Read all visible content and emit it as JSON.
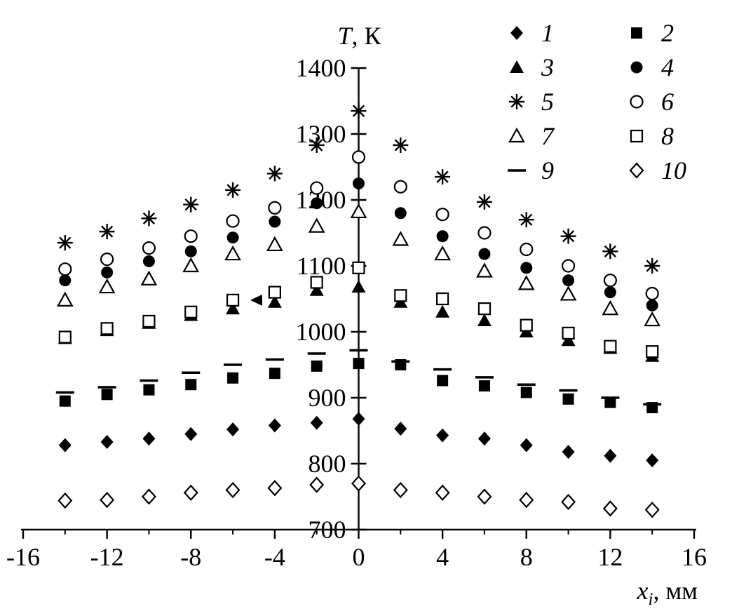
{
  "labels": {
    "y_axis_italic": "T",
    "y_axis_rest": ", К",
    "x_axis_italic": "x",
    "x_axis_sub": "i",
    "x_axis_rest": ", мм"
  },
  "chart_data": {
    "type": "scatter",
    "title": "T, К",
    "xlabel": "x_i, мм",
    "ylabel": "T, К",
    "xlim": [
      -16,
      16
    ],
    "ylim": [
      700,
      1400
    ],
    "grid": false,
    "legend_position": "top-right",
    "x_ticks": [
      -16,
      -12,
      -8,
      -4,
      0,
      4,
      8,
      12,
      16
    ],
    "x_minor_step": 2,
    "y_ticks": [
      700,
      800,
      900,
      1000,
      1100,
      1200,
      1300,
      1400
    ],
    "x": [
      -14,
      -12,
      -10,
      -8,
      -6,
      -4,
      -2,
      0,
      2,
      4,
      6,
      8,
      10,
      12,
      14
    ],
    "series": [
      {
        "name": "1",
        "marker": "filled-diamond",
        "values": [
          828,
          833,
          838,
          845,
          852,
          858,
          862,
          868,
          853,
          843,
          838,
          828,
          818,
          812,
          805
        ]
      },
      {
        "name": "2",
        "marker": "filled-square",
        "values": [
          895,
          905,
          912,
          920,
          930,
          937,
          948,
          952,
          950,
          926,
          918,
          908,
          898,
          893,
          885
        ]
      },
      {
        "name": "3",
        "marker": "filled-triangle",
        "values": [
          990,
          1002,
          1013,
          1025,
          1035,
          1045,
          1063,
          1068,
          1045,
          1030,
          1017,
          1000,
          987,
          975,
          963
        ]
      },
      {
        "name": "4",
        "marker": "filled-circle",
        "values": [
          1078,
          1090,
          1107,
          1122,
          1143,
          1167,
          1195,
          1225,
          1180,
          1145,
          1118,
          1097,
          1078,
          1060,
          1040
        ]
      },
      {
        "name": "5",
        "marker": "asterisk",
        "values": [
          1135,
          1152,
          1172,
          1193,
          1215,
          1240,
          1283,
          1335,
          1283,
          1235,
          1197,
          1170,
          1145,
          1122,
          1100
        ]
      },
      {
        "name": "6",
        "marker": "open-circle",
        "values": [
          1095,
          1110,
          1127,
          1145,
          1168,
          1188,
          1218,
          1265,
          1220,
          1178,
          1150,
          1125,
          1100,
          1078,
          1058
        ]
      },
      {
        "name": "7",
        "marker": "open-triangle",
        "values": [
          1048,
          1068,
          1080,
          1100,
          1118,
          1132,
          1160,
          1182,
          1140,
          1118,
          1092,
          1073,
          1057,
          1035,
          1018
        ]
      },
      {
        "name": "8",
        "marker": "open-square",
        "values": [
          992,
          1005,
          1016,
          1030,
          1048,
          1060,
          1075,
          1097,
          1055,
          1050,
          1035,
          1010,
          998,
          978,
          970
        ]
      },
      {
        "name": "9",
        "marker": "dash",
        "values": [
          908,
          916,
          926,
          938,
          950,
          958,
          967,
          972,
          955,
          943,
          931,
          920,
          911,
          900,
          890
        ]
      },
      {
        "name": "10",
        "marker": "open-diamond",
        "values": [
          744,
          745,
          750,
          756,
          760,
          763,
          768,
          770,
          760,
          756,
          750,
          745,
          742,
          732,
          730
        ]
      }
    ],
    "annotations": [
      {
        "marker": "left-arrow",
        "x": -4.8,
        "y": 1048
      }
    ]
  }
}
